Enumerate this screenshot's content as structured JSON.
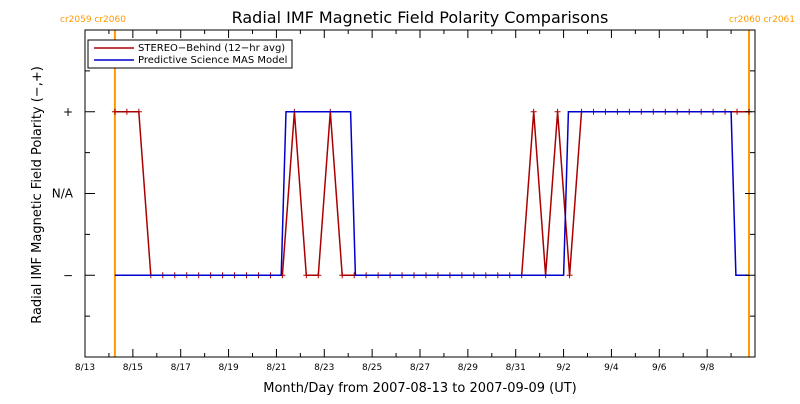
{
  "chart_data": {
    "type": "line",
    "title": "Radial IMF Magnetic Field Polarity Comparisons",
    "xlabel": "Month/Day from 2007-08-13 to 2007-09-09 (UT)",
    "ylabel": "Radial IMF Magnetic Field Polarity (−,+)",
    "x_ticks": [
      "8/13",
      "8/15",
      "8/17",
      "8/19",
      "8/21",
      "8/23",
      "8/25",
      "8/27",
      "8/29",
      "8/31",
      "9/2",
      "9/4",
      "9/6",
      "9/8"
    ],
    "y_ticks": [
      "+",
      "N/A",
      "−"
    ],
    "y_levels": {
      "+": 1,
      "N/A": 0,
      "−": -1
    },
    "ylim": [
      -2,
      2
    ],
    "xlim_days": [
      0,
      28
    ],
    "legend_position": "top-left",
    "carrington_markers": [
      {
        "x": 1.25,
        "label": "cr2059 cr2060",
        "side": "left",
        "color": "#ff9900"
      },
      {
        "x": 27.75,
        "label": "cr2060 cr2061",
        "side": "right",
        "color": "#ff9900"
      }
    ],
    "series": [
      {
        "name": "STEREO−Behind (12−hr avg)",
        "color": "#aa0000",
        "markers": true,
        "x": [
          1.25,
          1.75,
          2.25,
          2.75,
          3.25,
          3.75,
          4.25,
          4.75,
          5.25,
          5.75,
          6.25,
          6.75,
          7.25,
          7.75,
          8.25,
          8.75,
          9.25,
          9.75,
          10.25,
          10.75,
          11.25,
          11.75,
          12.25,
          12.75,
          13.25,
          13.75,
          14.25,
          14.75,
          15.25,
          15.75,
          16.25,
          16.75,
          17.25,
          17.75,
          18.25,
          18.75,
          19.25,
          19.75,
          20.25,
          20.75,
          21.25,
          21.75,
          22.25,
          22.75,
          23.25,
          23.75,
          24.25,
          24.75,
          25.25,
          25.75,
          26.25,
          26.75,
          27.25,
          27.75
        ],
        "y": [
          1,
          1,
          1,
          -1,
          -1,
          -1,
          -1,
          -1,
          -1,
          -1,
          -1,
          -1,
          -1,
          -1,
          -1,
          1,
          -1,
          -1,
          1,
          -1,
          -1,
          -1,
          -1,
          -1,
          -1,
          -1,
          -1,
          -1,
          -1,
          -1,
          -1,
          -1,
          -1,
          -1,
          -1,
          1,
          -1,
          1,
          -1,
          1,
          1,
          1,
          1,
          1,
          1,
          1,
          1,
          1,
          1,
          1,
          1,
          1,
          1,
          1
        ]
      },
      {
        "name": "Predictive Science MAS Model",
        "color": "#0000cc",
        "markers": false,
        "x": [
          1.25,
          8.2,
          8.4,
          11.1,
          11.3,
          20.0,
          20.2,
          27.0,
          27.2,
          27.75
        ],
        "y": [
          -1,
          -1,
          1,
          1,
          -1,
          -1,
          1,
          1,
          -1,
          -1
        ]
      }
    ]
  }
}
